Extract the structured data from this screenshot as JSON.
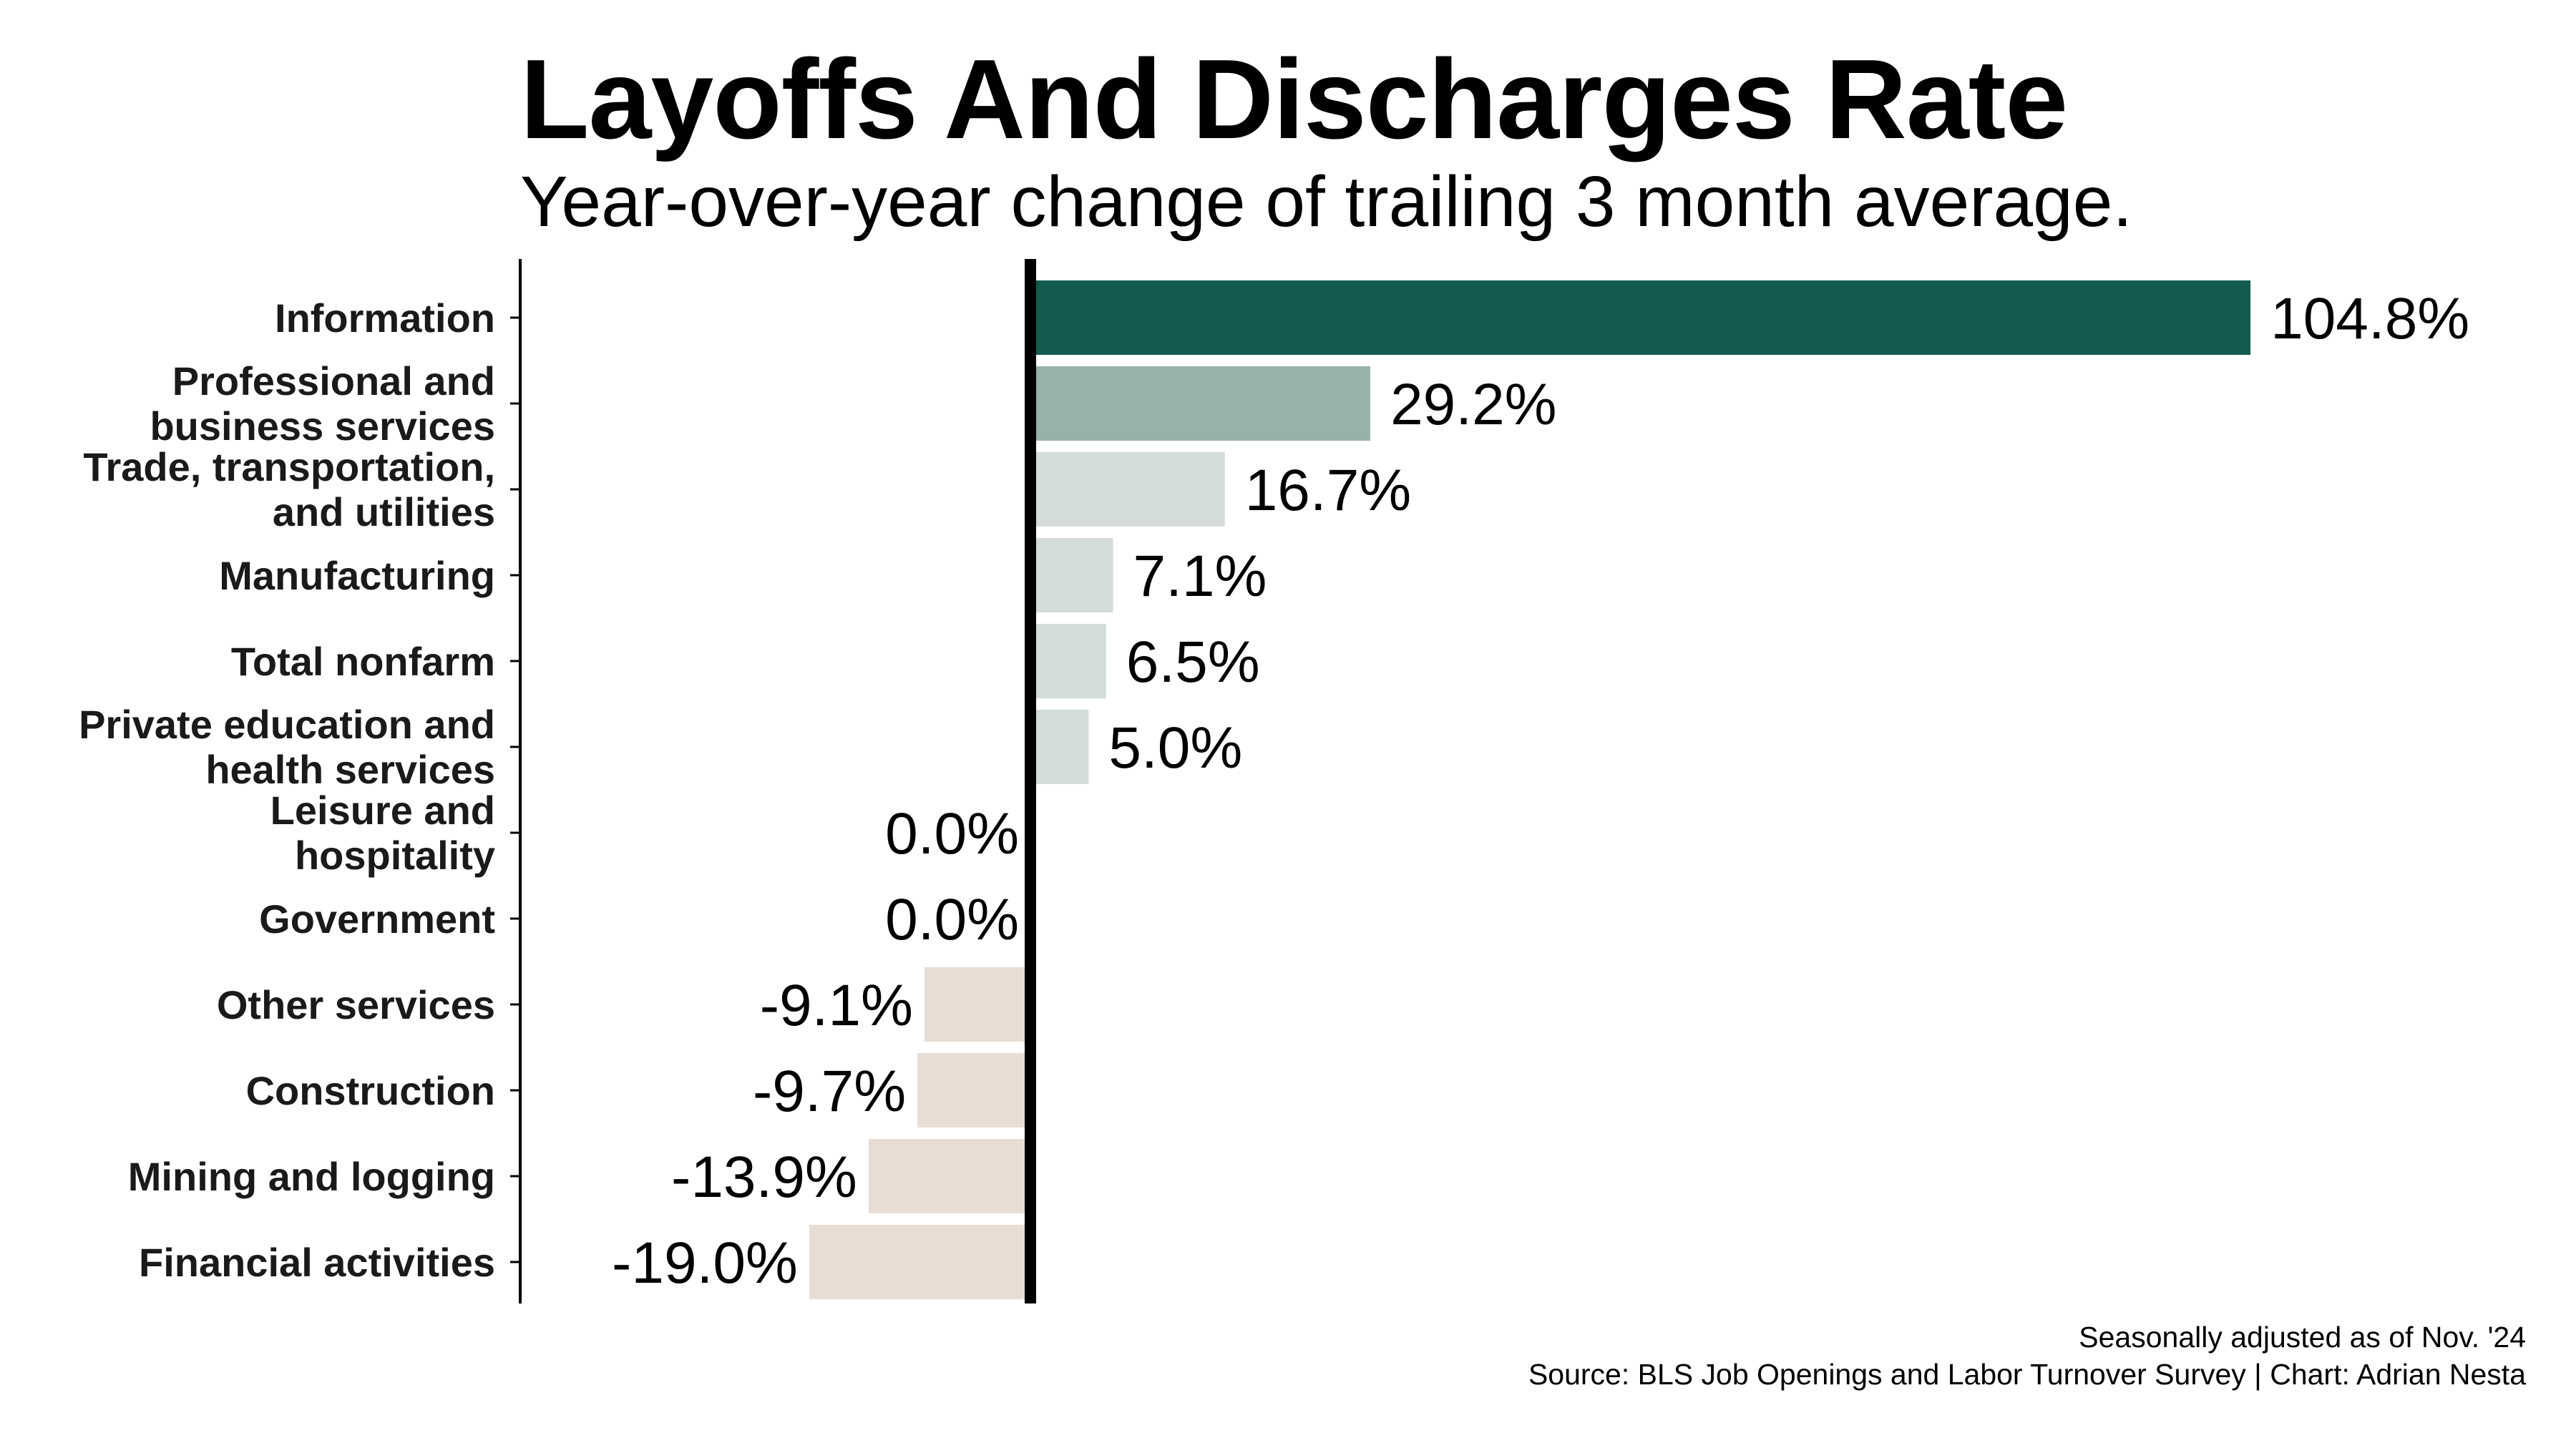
{
  "chart_data": {
    "type": "bar",
    "orientation": "horizontal",
    "title": "Layoffs And Discharges Rate",
    "subtitle": "Year-over-year change of trailing 3 month average.",
    "categories": [
      [
        "Information"
      ],
      [
        "Professional and",
        "business services"
      ],
      [
        "Trade, transportation,",
        "and utilities"
      ],
      [
        "Manufacturing"
      ],
      [
        "Total nonfarm"
      ],
      [
        "Private education and",
        "health services"
      ],
      [
        "Leisure and",
        "hospitality"
      ],
      [
        "Government"
      ],
      [
        "Other services"
      ],
      [
        "Construction"
      ],
      [
        "Mining and logging"
      ],
      [
        "Financial activities"
      ]
    ],
    "values": [
      104.8,
      29.2,
      16.7,
      7.1,
      6.5,
      5.0,
      0.0,
      0.0,
      -9.1,
      -9.7,
      -13.9,
      -19.0
    ],
    "value_labels": [
      "104.8%",
      "29.2%",
      "16.7%",
      "7.1%",
      "6.5%",
      "5.0%",
      "0.0%",
      "0.0%",
      "-9.1%",
      "-9.7%",
      "-13.9%",
      "-19.0%"
    ],
    "bar_colors": [
      "#135a50",
      "#97b2ab",
      "#d3dcda",
      "#d3dcda",
      "#d3dcda",
      "#d3dcda",
      "#d3dcda",
      "#d3dcda",
      "#e8ddd5",
      "#e8ddd5",
      "#e8ddd5",
      "#e8ddd5"
    ],
    "xlim": [
      -19.0,
      104.8
    ],
    "grid": false,
    "legend": "none"
  },
  "footer": {
    "line1": "Seasonally adjusted as of Nov. '24",
    "line2": "Source: BLS Job Openings and Labor Turnover Survey | Chart: Adrian Nesta"
  }
}
